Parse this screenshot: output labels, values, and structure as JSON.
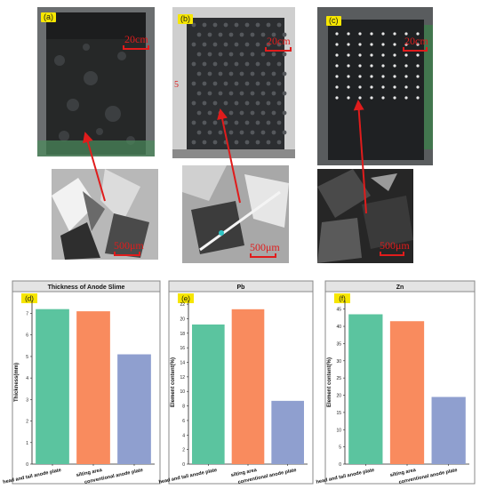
{
  "photos": {
    "top": [
      {
        "tag": "(a)",
        "scale": "20cm"
      },
      {
        "tag": "(b)",
        "scale": "20cm"
      },
      {
        "tag": "(c)",
        "scale": "20cm"
      }
    ],
    "bottom": [
      {
        "scale": "500μm"
      },
      {
        "scale": "500μm"
      },
      {
        "scale": "500μm"
      }
    ],
    "arrow_color": "#e01c1c",
    "side_mark": "5"
  },
  "colors": {
    "bar_head_tail": "#5bc49f",
    "bar_silting": "#f98b5e",
    "bar_conventional": "#8f9fcf",
    "tag_yellow": "#f6e600"
  },
  "chart_data": [
    {
      "type": "bar",
      "tag": "(d)",
      "title": "Thickness of Anode Slime",
      "ylabel": "Thickness(mm)",
      "xlabel": "",
      "categories": [
        "head and tail anode plate",
        "silting area",
        "conventional anode plate"
      ],
      "values": [
        7.2,
        7.1,
        5.1
      ],
      "ylim": [
        0,
        7.6
      ],
      "yticks": [
        0,
        1,
        2,
        3,
        4,
        5,
        6,
        7
      ],
      "grid": false
    },
    {
      "type": "bar",
      "tag": "(e)",
      "title": "Pb",
      "ylabel": "Element content(%)",
      "xlabel": "",
      "categories": [
        "head and tail anode plate",
        "silting area",
        "conventional anode plate"
      ],
      "values": [
        19.2,
        21.3,
        8.7
      ],
      "ylim": [
        0,
        22.5
      ],
      "yticks": [
        0,
        2,
        4,
        6,
        8,
        10,
        12,
        14,
        16,
        18,
        20,
        22
      ],
      "grid": false
    },
    {
      "type": "bar",
      "tag": "(f)",
      "title": "Zn",
      "ylabel": "Element content(%)",
      "xlabel": "",
      "categories": [
        "head and tail anode plate",
        "silting area",
        "conventional anode plate"
      ],
      "values": [
        43.5,
        41.5,
        19.5
      ],
      "ylim": [
        0,
        47.5
      ],
      "yticks": [
        0,
        5,
        10,
        15,
        20,
        25,
        30,
        35,
        40,
        45
      ],
      "grid": false
    }
  ]
}
